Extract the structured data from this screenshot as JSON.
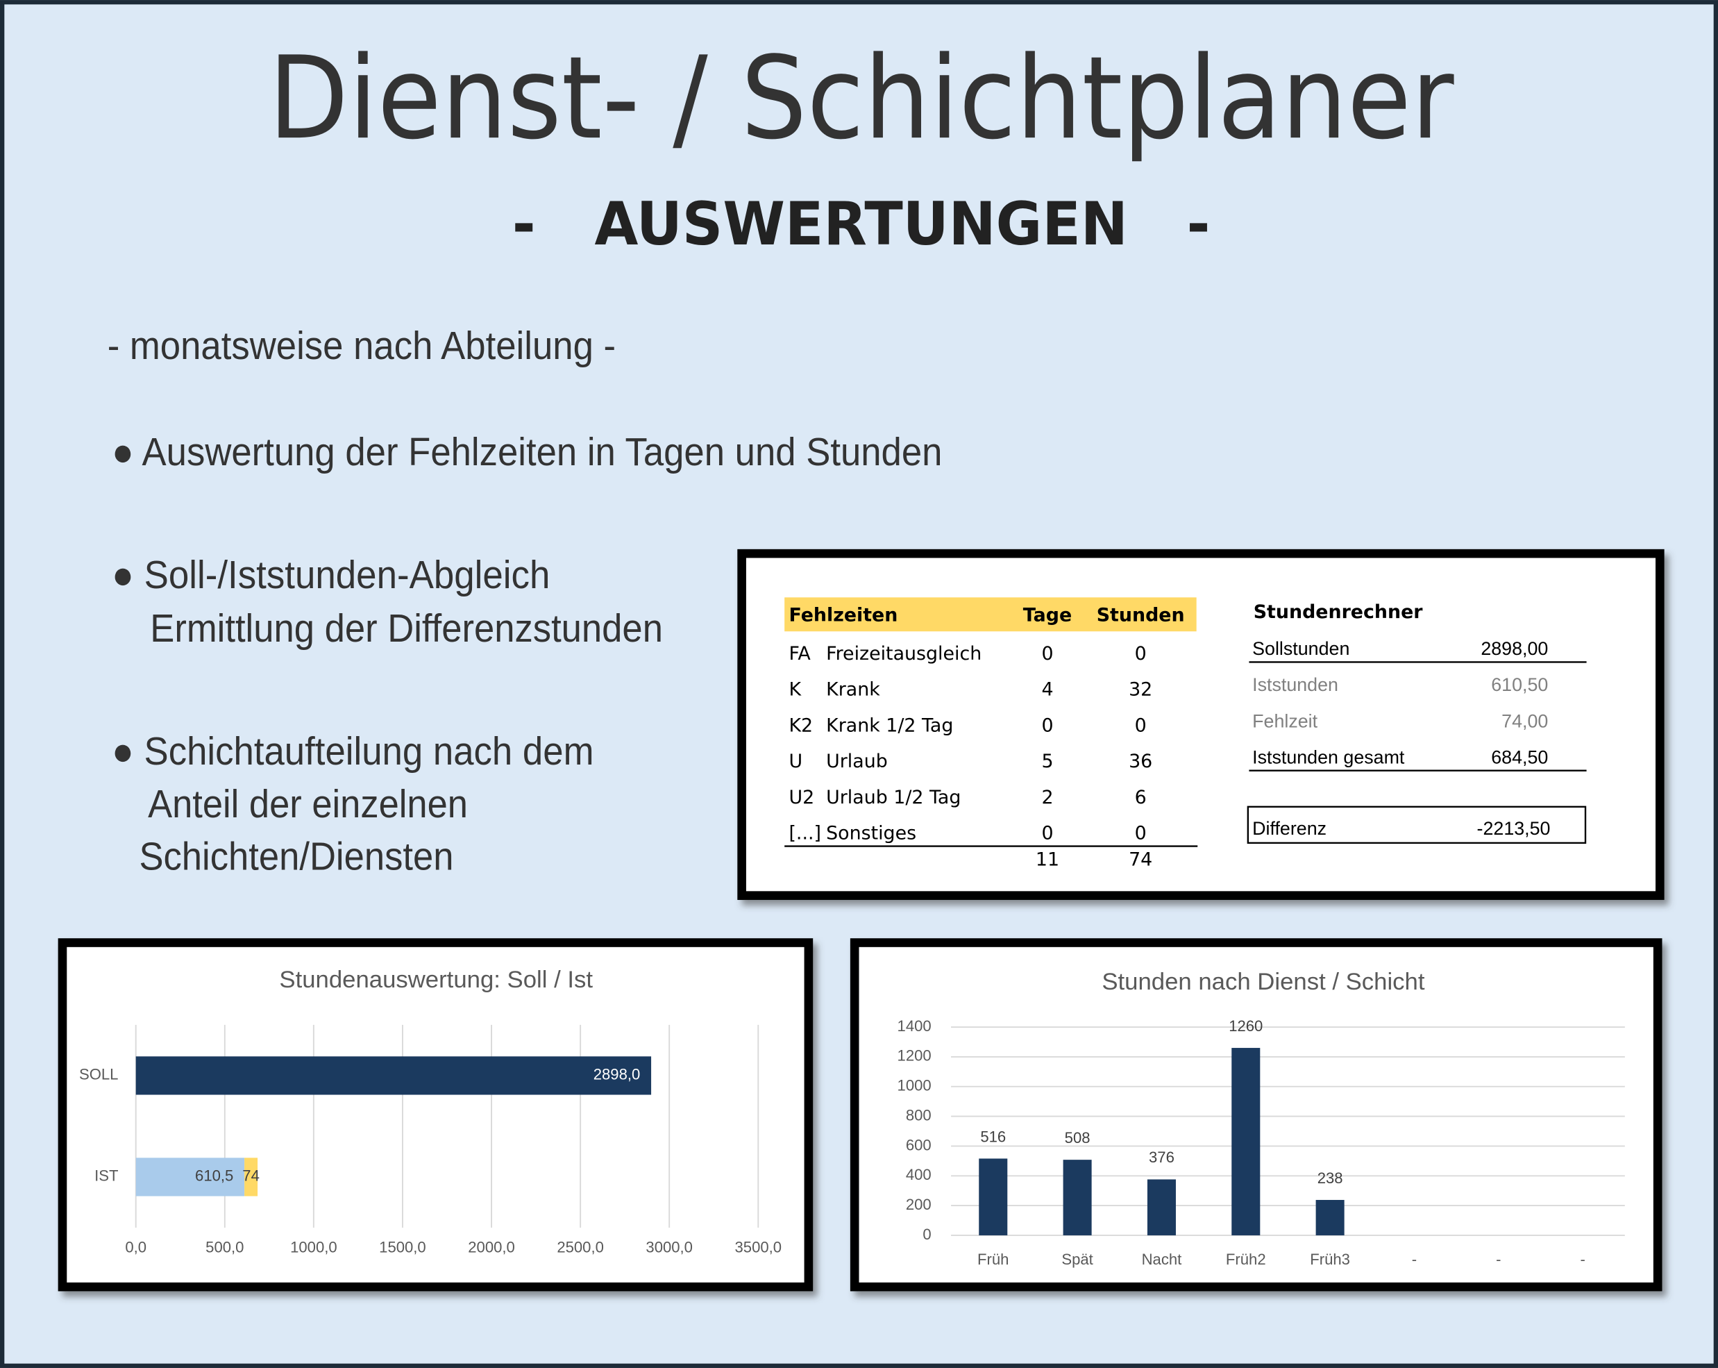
{
  "header": {
    "title": "Dienst- / Schichtplaner",
    "subtitle": "-   AUSWERTUNGEN   -"
  },
  "intro": "- monatsweise nach Abteilung -",
  "bullets": [
    [
      "● Auswertung der Fehlzeiten in Tagen und Stunden"
    ],
    [
      "● Soll-/Iststunden-Abgleich",
      "Ermittlung der Differenzstunden"
    ],
    [
      "● Schichtaufteilung nach dem",
      "Anteil der einzelnen",
      "Schichten/Diensten"
    ]
  ],
  "table": {
    "header": [
      "Fehlzeiten",
      "Tage",
      "Stunden"
    ],
    "rows": [
      [
        "FA",
        "Freizeitausgleich",
        0,
        0
      ],
      [
        "K",
        "Krank",
        4,
        32
      ],
      [
        "K2",
        "Krank 1/2 Tag",
        0,
        0
      ],
      [
        "U",
        "Urlaub",
        5,
        36
      ],
      [
        "U2",
        "Urlaub 1/2 Tag",
        2,
        6
      ],
      [
        "[...]",
        "Sonstiges",
        0,
        0
      ]
    ],
    "totals": [
      11,
      74
    ]
  },
  "rechner": {
    "title": "Stundenrechner",
    "rows": [
      [
        "Sollstunden",
        "2898,00"
      ],
      [
        "Iststunden",
        "610,50"
      ],
      [
        "Fehlzeit",
        "74,00"
      ],
      [
        "Iststunden gesamt",
        "684,50"
      ]
    ],
    "difference": [
      "Differenz",
      "-2213,50"
    ]
  },
  "chart_data": [
    {
      "type": "hbar-stacked",
      "title": "Stundenauswertung: Soll / Ist",
      "categories": [
        "SOLL",
        "IST"
      ],
      "series": [
        {
          "color": "#1b3a5f",
          "values": [
            2898,
            null
          ],
          "value_labels": [
            "2898,0",
            null
          ]
        },
        {
          "color": "#a9cbeb",
          "values": [
            null,
            610.5
          ],
          "value_labels": [
            null,
            "610,5"
          ]
        },
        {
          "color": "#ffd966",
          "values": [
            null,
            74
          ],
          "value_labels": [
            null,
            "74"
          ]
        }
      ],
      "xlim": [
        0,
        3500
      ],
      "xticks": [
        {
          "value": 0,
          "label": "0,0"
        },
        {
          "value": 500,
          "label": "500,0"
        },
        {
          "value": 1000,
          "label": "1000,0"
        },
        {
          "value": 1500,
          "label": "1500,0"
        },
        {
          "value": 2000,
          "label": "2000,0"
        },
        {
          "value": 2500,
          "label": "2500,0"
        },
        {
          "value": 3000,
          "label": "3000,0"
        },
        {
          "value": 3500,
          "label": "3500,0"
        }
      ],
      "grid": true
    },
    {
      "type": "bar",
      "title": "Stunden nach Dienst / Schicht",
      "categories": [
        "Früh",
        "Spät",
        "Nacht",
        "Früh2",
        "Früh3",
        "-",
        "-",
        "-"
      ],
      "values": [
        516,
        508,
        376,
        1260,
        238,
        null,
        null,
        null
      ],
      "color": "#1b3a5f",
      "ylim": [
        0,
        1400
      ],
      "yticks": [
        0,
        200,
        400,
        600,
        800,
        1000,
        1200,
        1400
      ],
      "grid": true
    }
  ]
}
